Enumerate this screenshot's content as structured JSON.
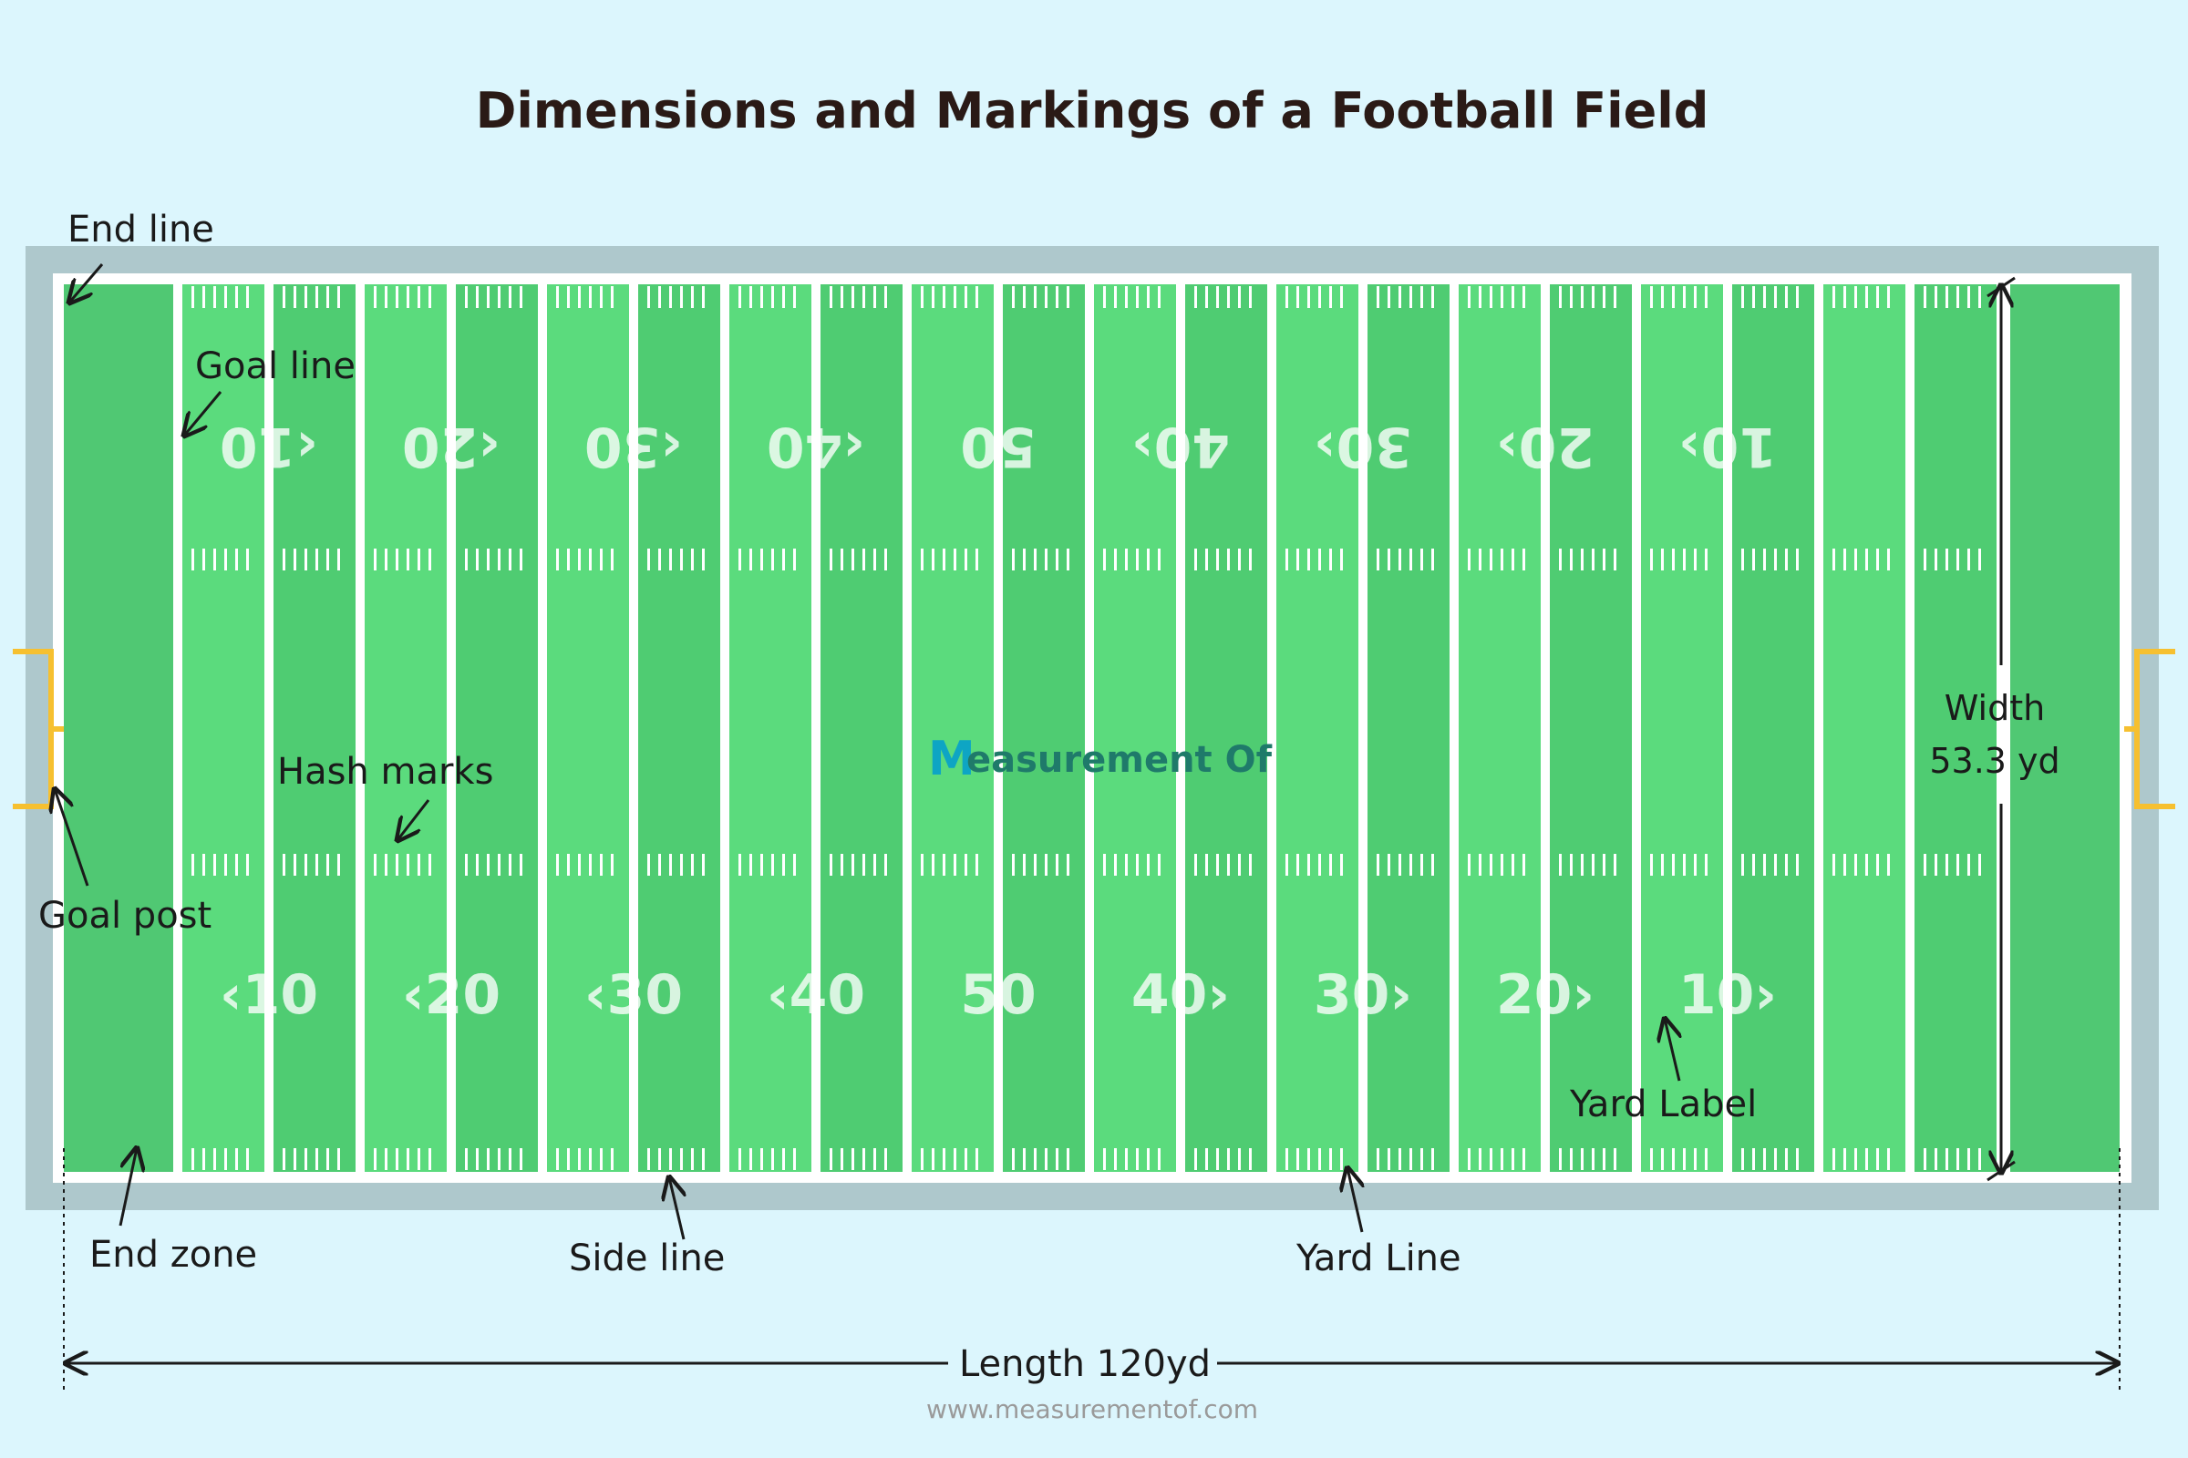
{
  "title": "Dimensions and Markings of a Football Field",
  "labels": {
    "end_line": "End line",
    "goal_line": "Goal line",
    "hash_marks": "Hash marks",
    "goal_post": "Goal post",
    "end_zone": "End zone",
    "side_line": "Side line",
    "yard_line": "Yard Line",
    "yard_label": "Yard Label",
    "width_line1": "Width",
    "width_line2": "53.3 yd",
    "length": "Length 120yd"
  },
  "yard_numbers": [
    "10",
    "20",
    "30",
    "40",
    "50",
    "40",
    "30",
    "20",
    "10"
  ],
  "logo": {
    "mark": "M",
    "text": "easurement Of"
  },
  "footer_url": "www.measurementof.com",
  "colors": {
    "background": "#dcf6fd",
    "border": "#aec8cc",
    "field_light": "#5bdb7d",
    "field_dark": "#4fcc72",
    "end_zone": "#50c873",
    "lines": "#ffffff",
    "goal_post": "#f6c030",
    "text": "#2a1a16",
    "logo": "#0ea5c4"
  }
}
